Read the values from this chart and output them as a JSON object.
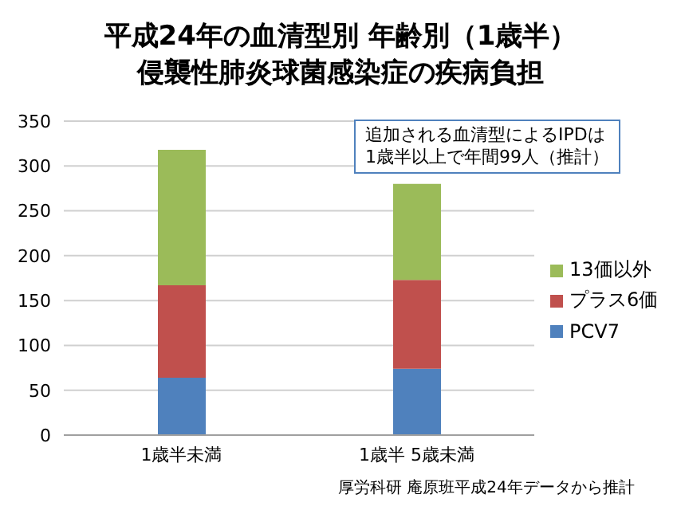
{
  "chart_data": {
    "type": "bar",
    "title": "平成24年の血清型別 年齢別（1歳半）",
    "subtitle": "侵襲性肺炎球菌感染症の疾病負担",
    "categories": [
      "1歳半未満",
      "1歳半 5歳未満"
    ],
    "stacked": true,
    "series": [
      {
        "name": "PCV7",
        "color": "#4f81bd",
        "values": [
          64,
          74
        ]
      },
      {
        "name": "プラス6価",
        "color": "#c0504d",
        "values": [
          103,
          99
        ]
      },
      {
        "name": "13価以外",
        "color": "#9bbb59",
        "values": [
          151,
          107
        ]
      }
    ],
    "ylim": [
      0,
      350
    ],
    "yticks": [
      0,
      50,
      100,
      150,
      200,
      250,
      300,
      350
    ],
    "grid": "y",
    "legend": "right",
    "annotations": [
      "追加される血清型によるIPDは",
      "1歳半以上で年間99人（推計）",
      "厚労科研 庵原班平成24年データから推計"
    ]
  }
}
